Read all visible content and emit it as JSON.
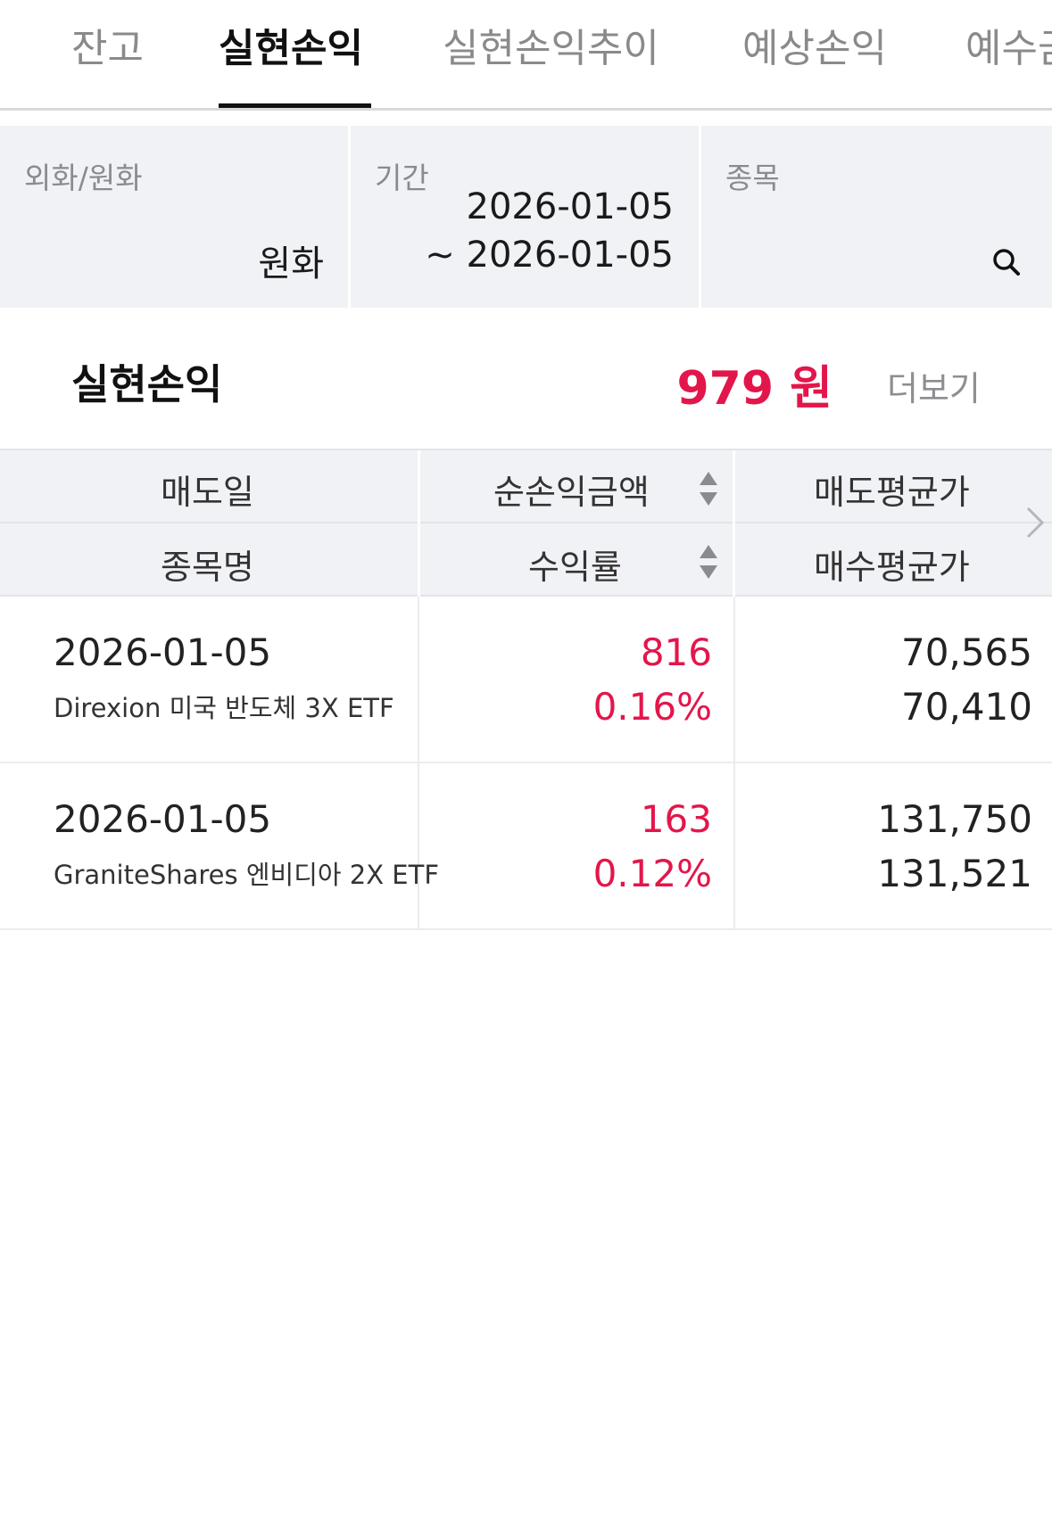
{
  "tabs": [
    {
      "label": "잔고",
      "active": false
    },
    {
      "label": "실현손익",
      "active": true
    },
    {
      "label": "실현손익추이",
      "active": false
    },
    {
      "label": "예상손익",
      "active": false
    },
    {
      "label": "예수금",
      "active": false
    }
  ],
  "filters": {
    "currency": {
      "label": "외화/원화",
      "value": "원화"
    },
    "period": {
      "label": "기간",
      "from": "2026-01-05",
      "to": "~ 2026-01-05"
    },
    "symbol": {
      "label": "종목",
      "icon": "search-icon"
    }
  },
  "summary": {
    "title": "실현손익",
    "amount": "979 원",
    "more_label": "더보기"
  },
  "table": {
    "headers": {
      "sell_date": "매도일",
      "net_pnl": "순손익금액",
      "avg_sell": "매도평균가",
      "name": "종목명",
      "return_rate": "수익률",
      "avg_buy": "매수평균가"
    },
    "rows": [
      {
        "date": "2026-01-05",
        "name": "Direxion 미국 반도체 3X ETF",
        "pnl": "816",
        "rate": "0.16%",
        "sell_avg": "70,565",
        "buy_avg": "70,410"
      },
      {
        "date": "2026-01-05",
        "name": "GraniteShares 엔비디아 2X ETF",
        "pnl": "163",
        "rate": "0.12%",
        "sell_avg": "131,750",
        "buy_avg": "131,521"
      }
    ]
  },
  "colors": {
    "profit": "#e3164b",
    "panel_bg": "#f1f2f5",
    "active_tab": "#111111",
    "inactive_tab": "#8a8a8d"
  }
}
